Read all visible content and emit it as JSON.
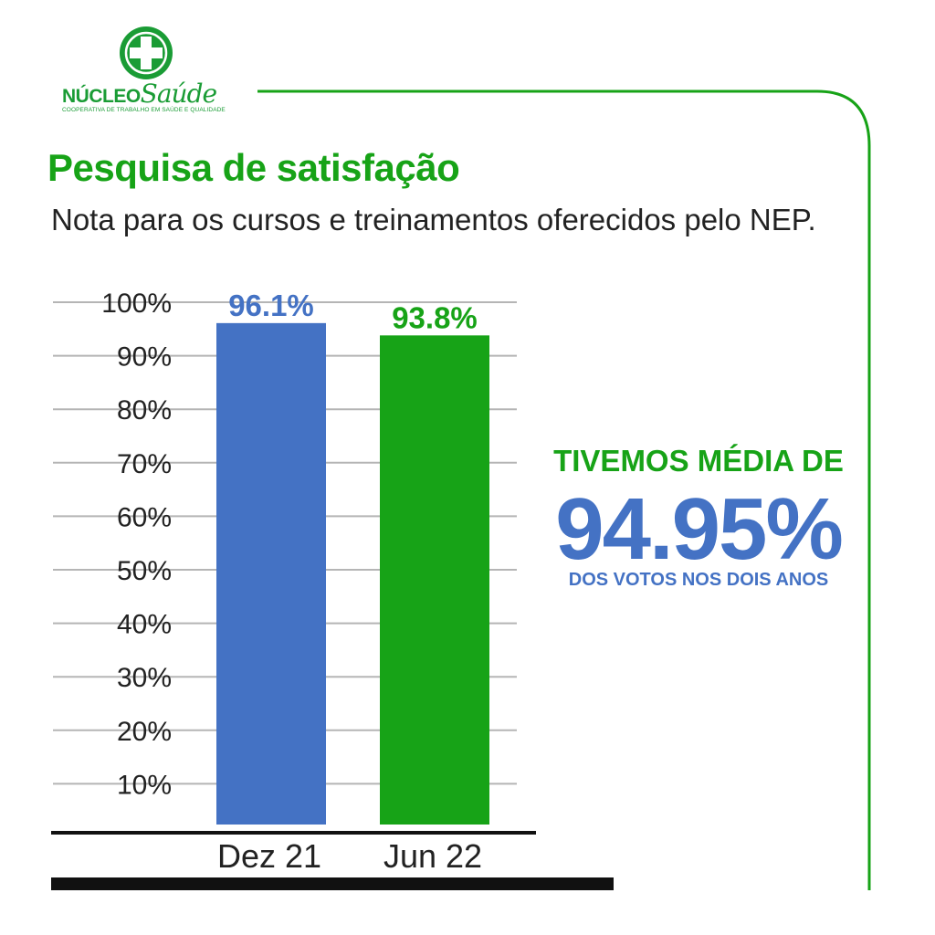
{
  "brand": {
    "name_bold": "NÚCLEO",
    "name_script": "Saúde",
    "tagline": "COOPERATIVA DE TRABALHO EM SAÚDE E QUALIDADE",
    "color": "#1a9c35",
    "icon": "medical-cross-icon"
  },
  "header": {
    "title": "Pesquisa de satisfação",
    "subtitle": "Nota para os cursos e treinamentos oferecidos pelo NEP."
  },
  "highlight": {
    "top": "TIVEMOS MÉDIA DE",
    "value": "94.95%",
    "bottom": "DOS VOTOS NOS DOIS ANOS"
  },
  "colors": {
    "green": "#17a317",
    "blue": "#4472c4",
    "grid": "#b5b5b5",
    "axis": "#111111"
  },
  "chart_data": {
    "type": "bar",
    "categories": [
      "Dez 21",
      "Jun 22"
    ],
    "values": [
      96.1,
      93.8
    ],
    "value_labels": [
      "96.1%",
      "93.8%"
    ],
    "bar_colors": [
      "#4472c4",
      "#17a317"
    ],
    "y_ticks": [
      10,
      20,
      30,
      40,
      50,
      60,
      70,
      80,
      90,
      100
    ],
    "y_tick_labels": [
      "10%",
      "20%",
      "30%",
      "40%",
      "50%",
      "60%",
      "70%",
      "80%",
      "90%",
      "100%"
    ],
    "ylim": [
      0,
      100
    ],
    "grid": true,
    "title": "",
    "xlabel": "",
    "ylabel": ""
  }
}
